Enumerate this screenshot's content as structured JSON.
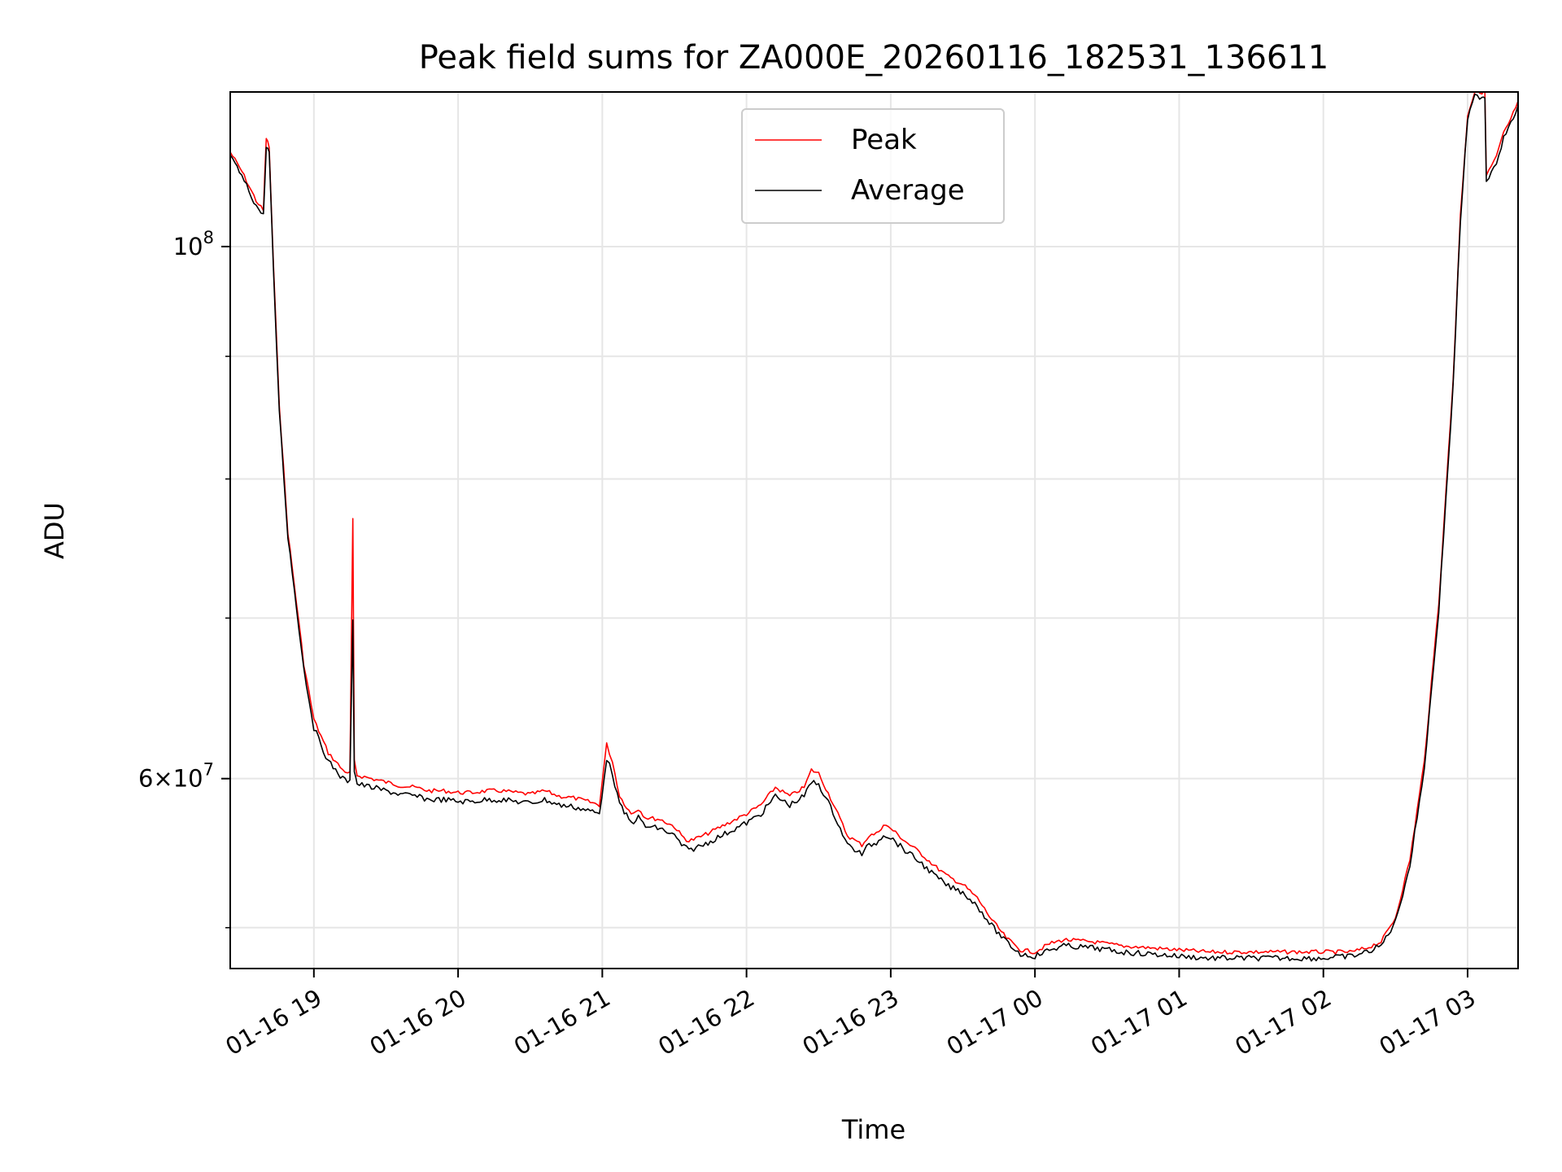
{
  "chart_data": {
    "type": "line",
    "title": "Peak field sums for ZA000E_20260116_182531_136611",
    "xlabel": "Time",
    "ylabel": "ADU",
    "yscale": "log",
    "xlim": [
      18.42,
      27.35
    ],
    "ylim": [
      50000000,
      116000000
    ],
    "grid": true,
    "legend_position": "top-center",
    "x_ticks": [
      {
        "value": 19,
        "label": "01-16 19"
      },
      {
        "value": 20,
        "label": "01-16 20"
      },
      {
        "value": 21,
        "label": "01-16 21"
      },
      {
        "value": 22,
        "label": "01-16 22"
      },
      {
        "value": 23,
        "label": "01-16 23"
      },
      {
        "value": 24,
        "label": "01-17 00"
      },
      {
        "value": 25,
        "label": "01-17 01"
      },
      {
        "value": 26,
        "label": "01-17 02"
      },
      {
        "value": 27,
        "label": "01-17 03"
      }
    ],
    "y_major_ticks": [
      {
        "value": 100000000,
        "base": "10",
        "exp": "8"
      },
      {
        "value": 60000000,
        "mant": "6",
        "base": "10",
        "exp": "7"
      }
    ],
    "y_minor_ticks": [
      52000000,
      70000000,
      80000000,
      90000000
    ],
    "series": [
      {
        "name": "Peak",
        "color": "#ff0000",
        "x": [
          18.42,
          18.5,
          18.6,
          18.65,
          18.67,
          18.69,
          18.72,
          18.76,
          18.82,
          18.88,
          18.93,
          19.0,
          19.1,
          19.15,
          19.2,
          19.25,
          19.27,
          19.28,
          19.3,
          19.4,
          19.5,
          19.6,
          19.7,
          19.8,
          19.9,
          20.0,
          20.1,
          20.2,
          20.3,
          20.4,
          20.5,
          20.6,
          20.7,
          20.8,
          20.9,
          20.98,
          21.03,
          21.07,
          21.12,
          21.2,
          21.25,
          21.3,
          21.4,
          21.5,
          21.55,
          21.6,
          21.7,
          21.8,
          21.9,
          22.0,
          22.1,
          22.2,
          22.3,
          22.4,
          22.45,
          22.5,
          22.6,
          22.7,
          22.8,
          22.85,
          22.9,
          22.95,
          23.0,
          23.1,
          23.2,
          23.3,
          23.4,
          23.5,
          23.6,
          23.7,
          23.8,
          23.9,
          24.0,
          24.1,
          24.2,
          24.4,
          24.6,
          24.8,
          25.0,
          25.2,
          25.4,
          25.6,
          25.8,
          26.0,
          26.2,
          26.3,
          26.4,
          26.5,
          26.6,
          26.7,
          26.8,
          26.9,
          26.95,
          27.0,
          27.05,
          27.1,
          27.12,
          27.13,
          27.2,
          27.25,
          27.3,
          27.35
        ],
        "values": [
          109500000,
          107500000,
          104500000,
          103500000,
          111000000,
          110000000,
          98000000,
          86000000,
          76000000,
          71000000,
          67000000,
          63500000,
          61500000,
          61000000,
          60500000,
          60300000,
          77000000,
          61000000,
          60200000,
          60000000,
          59800000,
          59600000,
          59500000,
          59300000,
          59300000,
          59200000,
          59200000,
          59300000,
          59300000,
          59200000,
          59100000,
          59300000,
          59000000,
          58900000,
          58700000,
          58500000,
          62000000,
          61000000,
          59000000,
          58000000,
          58300000,
          57800000,
          57700000,
          57300000,
          56800000,
          56500000,
          56800000,
          57200000,
          57600000,
          58000000,
          58500000,
          59500000,
          59000000,
          59500000,
          60500000,
          60300000,
          58600000,
          56800000,
          56300000,
          56800000,
          56900000,
          57400000,
          57200000,
          56500000,
          55900000,
          55200000,
          54600000,
          54200000,
          53500000,
          52400000,
          51500000,
          50900000,
          50800000,
          51200000,
          51400000,
          51300000,
          51100000,
          51000000,
          50900000,
          50800000,
          50800000,
          50800000,
          50800000,
          50800000,
          50800000,
          51000000,
          51300000,
          52500000,
          55500000,
          61000000,
          71000000,
          88000000,
          103000000,
          113500000,
          116000000,
          116000000,
          116000000,
          107000000,
          109000000,
          111500000,
          113000000,
          115000000
        ]
      },
      {
        "name": "Average",
        "color": "#000000",
        "x": [
          18.42,
          18.5,
          18.6,
          18.65,
          18.67,
          18.69,
          18.72,
          18.76,
          18.82,
          18.88,
          18.93,
          19.0,
          19.1,
          19.15,
          19.2,
          19.25,
          19.27,
          19.28,
          19.3,
          19.4,
          19.5,
          19.6,
          19.7,
          19.8,
          19.9,
          20.0,
          20.1,
          20.2,
          20.3,
          20.4,
          20.5,
          20.6,
          20.7,
          20.8,
          20.9,
          20.98,
          21.03,
          21.07,
          21.12,
          21.2,
          21.25,
          21.3,
          21.4,
          21.5,
          21.55,
          21.6,
          21.7,
          21.8,
          21.9,
          22.0,
          22.1,
          22.2,
          22.3,
          22.4,
          22.45,
          22.5,
          22.6,
          22.7,
          22.8,
          22.85,
          22.9,
          22.95,
          23.0,
          23.1,
          23.2,
          23.3,
          23.4,
          23.5,
          23.6,
          23.7,
          23.8,
          23.9,
          24.0,
          24.1,
          24.2,
          24.4,
          24.6,
          24.8,
          25.0,
          25.2,
          25.4,
          25.6,
          25.8,
          26.0,
          26.2,
          26.3,
          26.4,
          26.5,
          26.6,
          26.7,
          26.8,
          26.9,
          26.95,
          27.0,
          27.05,
          27.1,
          27.12,
          27.13,
          27.2,
          27.25,
          27.3,
          27.35
        ],
        "values": [
          109000000,
          107000000,
          104000000,
          103000000,
          110000000,
          109500000,
          97500000,
          85500000,
          75700000,
          70700000,
          66700000,
          63000000,
          61000000,
          60500000,
          60000000,
          59800000,
          70000000,
          60500000,
          59700000,
          59500000,
          59300000,
          59100000,
          59000000,
          58800000,
          58800000,
          58700000,
          58700000,
          58800000,
          58800000,
          58700000,
          58600000,
          58800000,
          58500000,
          58400000,
          58200000,
          58000000,
          61200000,
          60300000,
          58500000,
          57500000,
          57800000,
          57300000,
          57200000,
          56800000,
          56300000,
          56000000,
          56300000,
          56700000,
          57100000,
          57500000,
          58000000,
          59000000,
          58500000,
          59000000,
          59800000,
          59700000,
          58100000,
          56300000,
          55800000,
          56300000,
          56400000,
          56900000,
          56700000,
          56000000,
          55400000,
          54700000,
          54100000,
          53800000,
          53100000,
          52100000,
          51300000,
          50700000,
          50600000,
          50900000,
          51100000,
          51000000,
          50800000,
          50700000,
          50600000,
          50500000,
          50500000,
          50500000,
          50500000,
          50500000,
          50600000,
          50800000,
          51100000,
          52300000,
          55200000,
          60600000,
          70500000,
          87500000,
          102500000,
          113000000,
          115500000,
          115500000,
          115500000,
          106500000,
          108500000,
          111000000,
          112500000,
          114500000
        ]
      }
    ]
  }
}
